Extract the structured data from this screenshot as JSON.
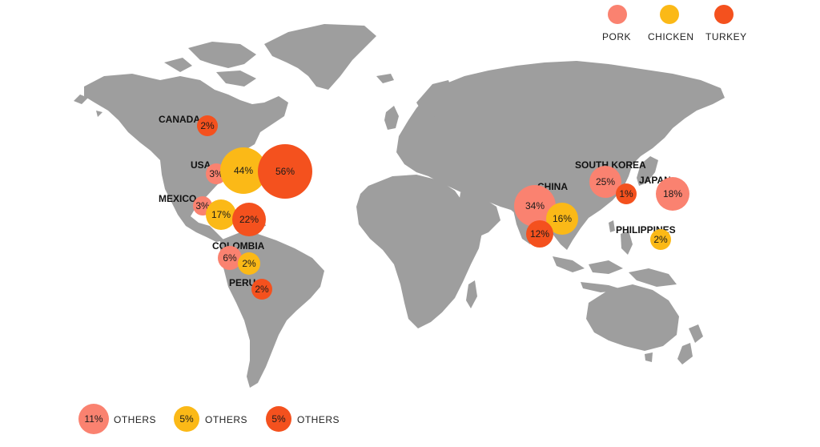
{
  "colors": {
    "pork": "#fa8270",
    "chicken": "#fbb917",
    "turkey": "#f4511e",
    "land": "#9e9e9e"
  },
  "legend": [
    {
      "key": "pork",
      "label": "PORK"
    },
    {
      "key": "chicken",
      "label": "CHICKEN"
    },
    {
      "key": "turkey",
      "label": "TURKEY"
    }
  ],
  "countries": [
    {
      "id": "canada",
      "name": "CANADA"
    },
    {
      "id": "usa",
      "name": "USA"
    },
    {
      "id": "mexico",
      "name": "MEXICO"
    },
    {
      "id": "colombia",
      "name": "COLOMBIA"
    },
    {
      "id": "peru",
      "name": "PERU"
    },
    {
      "id": "china",
      "name": "CHINA"
    },
    {
      "id": "south-korea",
      "name": "SOUTH KOREA"
    },
    {
      "id": "japan",
      "name": "JAPAN"
    },
    {
      "id": "philippines",
      "name": "PHILIPPINES"
    }
  ],
  "bubbles": [
    {
      "id": "canada-turkey",
      "country": "canada",
      "meat": "turkey",
      "value": 2,
      "label": "2%"
    },
    {
      "id": "usa-pork",
      "country": "usa",
      "meat": "pork",
      "value": 3,
      "label": "3%"
    },
    {
      "id": "usa-chicken",
      "country": "usa",
      "meat": "chicken",
      "value": 44,
      "label": "44%"
    },
    {
      "id": "usa-turkey",
      "country": "usa",
      "meat": "turkey",
      "value": 56,
      "label": "56%"
    },
    {
      "id": "mexico-pork",
      "country": "mexico",
      "meat": "pork",
      "value": 3,
      "label": "3%"
    },
    {
      "id": "mexico-chicken",
      "country": "mexico",
      "meat": "chicken",
      "value": 17,
      "label": "17%"
    },
    {
      "id": "mexico-turkey",
      "country": "mexico",
      "meat": "turkey",
      "value": 22,
      "label": "22%"
    },
    {
      "id": "colombia-pork",
      "country": "colombia",
      "meat": "pork",
      "value": 6,
      "label": "6%"
    },
    {
      "id": "colombia-chicken",
      "country": "colombia",
      "meat": "chicken",
      "value": 2,
      "label": "2%"
    },
    {
      "id": "peru-turkey",
      "country": "peru",
      "meat": "turkey",
      "value": 2,
      "label": "2%"
    },
    {
      "id": "china-pork",
      "country": "china",
      "meat": "pork",
      "value": 34,
      "label": "34%"
    },
    {
      "id": "china-chicken",
      "country": "china",
      "meat": "chicken",
      "value": 16,
      "label": "16%"
    },
    {
      "id": "china-turkey",
      "country": "china",
      "meat": "turkey",
      "value": 12,
      "label": "12%"
    },
    {
      "id": "south-korea-pork",
      "country": "south-korea",
      "meat": "pork",
      "value": 25,
      "label": "25%"
    },
    {
      "id": "south-korea-turkey",
      "country": "south-korea",
      "meat": "turkey",
      "value": 1,
      "label": "1%"
    },
    {
      "id": "japan-pork",
      "country": "japan",
      "meat": "pork",
      "value": 18,
      "label": "18%"
    },
    {
      "id": "philippines-chicken",
      "country": "philippines",
      "meat": "chicken",
      "value": 2,
      "label": "2%"
    }
  ],
  "others": [
    {
      "meat": "pork",
      "value": 11,
      "label": "11%",
      "text": "OTHERS"
    },
    {
      "meat": "chicken",
      "value": 5,
      "label": "5%",
      "text": "OTHERS"
    },
    {
      "meat": "turkey",
      "value": 5,
      "label": "5%",
      "text": "OTHERS"
    }
  ]
}
